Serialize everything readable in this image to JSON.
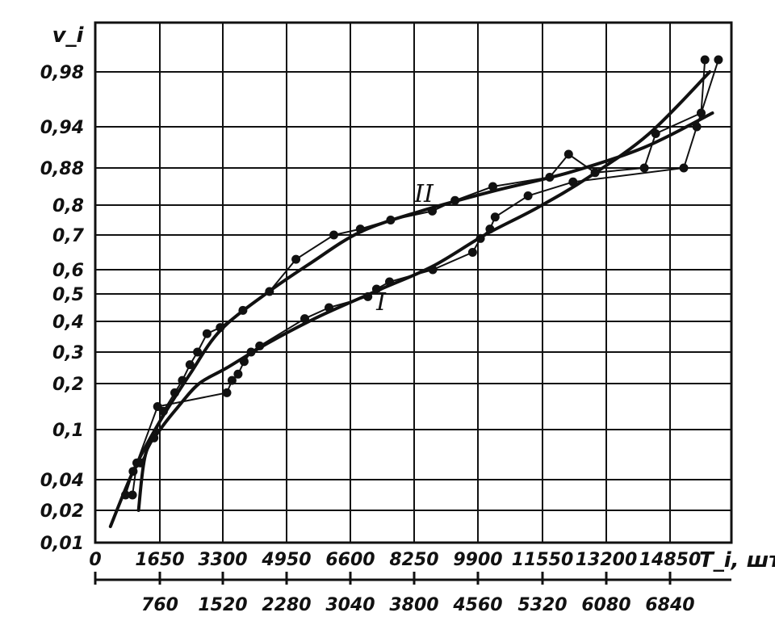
{
  "chart_data": {
    "type": "line",
    "title": "",
    "ylabel": "v_i",
    "xlabel": "T_i, шт",
    "y_tick_labels": [
      "0,01",
      "0,02",
      "0,04",
      "0,1",
      "0,2",
      "0,3",
      "0,4",
      "0,5",
      "0,6",
      "0,7",
      "0,8",
      "0,88",
      "0,94",
      "0,98"
    ],
    "x_tick_labels_top": [
      "0",
      "1650",
      "3300",
      "4950",
      "6600",
      "8250",
      "9900",
      "11550",
      "13200",
      "14850"
    ],
    "x_tick_labels_bottom": [
      "760",
      "1520",
      "2280",
      "3040",
      "3800",
      "4560",
      "5320",
      "6080",
      "6840"
    ],
    "grid": true,
    "y_scale": "probability",
    "series": [
      {
        "name": "I",
        "x_axis": "bottom",
        "points": [
          [
            500,
            0.02
          ],
          [
            580,
            0.07
          ],
          [
            750,
            0.1
          ],
          [
            960,
            0.15
          ],
          [
            1200,
            0.2
          ],
          [
            1520,
            0.25
          ],
          [
            2000,
            0.33
          ],
          [
            2600,
            0.42
          ],
          [
            3300,
            0.52
          ],
          [
            3900,
            0.61
          ],
          [
            4500,
            0.7
          ],
          [
            5100,
            0.79
          ],
          [
            5700,
            0.86
          ],
          [
            6400,
            0.93
          ],
          [
            7100,
            0.98
          ]
        ],
        "observed": [
          [
            430,
            0.03
          ],
          [
            480,
            0.06
          ],
          [
            720,
            0.15
          ],
          [
            1520,
            0.18
          ],
          [
            1580,
            0.21
          ],
          [
            1650,
            0.23
          ],
          [
            1720,
            0.27
          ],
          [
            1800,
            0.3
          ],
          [
            1900,
            0.32
          ],
          [
            2420,
            0.41
          ],
          [
            2700,
            0.45
          ],
          [
            3150,
            0.49
          ],
          [
            3250,
            0.52
          ],
          [
            3400,
            0.55
          ],
          [
            3900,
            0.6
          ],
          [
            4360,
            0.65
          ],
          [
            4450,
            0.69
          ],
          [
            4560,
            0.72
          ],
          [
            4620,
            0.76
          ],
          [
            5000,
            0.82
          ],
          [
            5520,
            0.85
          ],
          [
            6800,
            0.88
          ],
          [
            6950,
            0.94
          ],
          [
            7200,
            0.99
          ]
        ]
      },
      {
        "name": "II",
        "x_axis": "top",
        "points": [
          [
            400,
            0.015
          ],
          [
            1000,
            0.05
          ],
          [
            1650,
            0.11
          ],
          [
            2500,
            0.23
          ],
          [
            3300,
            0.37
          ],
          [
            4500,
            0.5
          ],
          [
            5700,
            0.62
          ],
          [
            7000,
            0.71
          ],
          [
            8600,
            0.78
          ],
          [
            10500,
            0.83
          ],
          [
            12500,
            0.87
          ],
          [
            14500,
            0.91
          ],
          [
            16300,
            0.95
          ]
        ],
        "observed": [
          [
            800,
            0.03
          ],
          [
            1000,
            0.05
          ],
          [
            1200,
            0.06
          ],
          [
            1550,
            0.09
          ],
          [
            1800,
            0.14
          ],
          [
            2100,
            0.18
          ],
          [
            2300,
            0.21
          ],
          [
            2500,
            0.26
          ],
          [
            2700,
            0.3
          ],
          [
            2950,
            0.36
          ],
          [
            3300,
            0.38
          ],
          [
            3900,
            0.44
          ],
          [
            4600,
            0.51
          ],
          [
            5300,
            0.63
          ],
          [
            6300,
            0.7
          ],
          [
            7000,
            0.72
          ],
          [
            7800,
            0.75
          ],
          [
            8900,
            0.78
          ],
          [
            9500,
            0.81
          ],
          [
            10500,
            0.84
          ],
          [
            12000,
            0.86
          ],
          [
            12500,
            0.9
          ],
          [
            13200,
            0.87
          ],
          [
            14500,
            0.88
          ],
          [
            14800,
            0.93
          ],
          [
            16000,
            0.95
          ],
          [
            16100,
            0.99
          ]
        ]
      }
    ],
    "curve_labels": [
      "II",
      "I"
    ],
    "colors": {
      "ink": "#111111",
      "background": "#ffffff"
    }
  }
}
